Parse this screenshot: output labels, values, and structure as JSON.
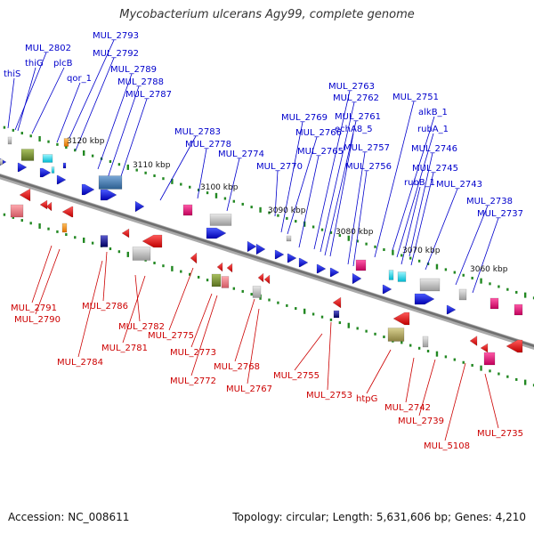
{
  "title": "Mycobacterium ulcerans Agy99, complete genome",
  "footer": {
    "accession": "Accession: NC_008611",
    "info": "Topology: circular; Length: 5,631,606 bp; Genes: 4,210"
  },
  "colors": {
    "forward_label": "#0000cc",
    "reverse_label": "#cc0000",
    "backbone": "#888888",
    "tick": "#228822"
  },
  "ruler_labels": [
    "3120 kbp",
    "3110 kbp",
    "3100 kbp",
    "3090 kbp",
    "3080 kbp",
    "3070 kbp",
    "3060 kbp"
  ],
  "top_labels": [
    "thiS",
    "MUL_2802",
    "thiG",
    "plcB",
    "qor_1",
    "MUL_2793",
    "MUL_2792",
    "MUL_2789",
    "MUL_2788",
    "MUL_2787",
    "MUL_2783",
    "MUL_2778",
    "MUL_2774",
    "MUL_2770",
    "MUL_2769",
    "MUL_2766",
    "MUL_2765",
    "MUL_2763",
    "MUL_2762",
    "MUL_2761",
    "echA8_5",
    "MUL_2757",
    "MUL_2756",
    "MUL_2751",
    "alkB_1",
    "rubA_1",
    "MUL_2746",
    "MUL_2745",
    "rubB_1",
    "MUL_2743",
    "MUL_2738",
    "MUL_2737"
  ],
  "bottom_labels": [
    "MUL_2791",
    "MUL_2790",
    "MUL_2786",
    "MUL_2784",
    "MUL_2782",
    "MUL_2781",
    "MUL_2775",
    "MUL_2773",
    "MUL_2772",
    "MUL_2768",
    "MUL_2767",
    "MUL_2755",
    "MUL_2753",
    "htpG",
    "MUL_2742",
    "MUL_2739",
    "MUL_5108",
    "MUL_2735"
  ]
}
